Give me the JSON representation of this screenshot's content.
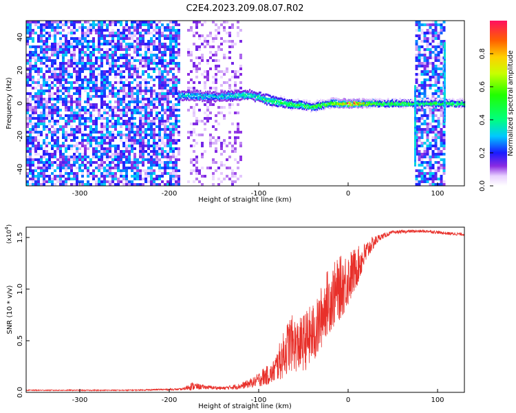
{
  "title": "C2E4.2023.209.08.07.R02",
  "chart_data": [
    {
      "type": "heatmap",
      "xlabel": "Height of straight line (km)",
      "ylabel": "Frequency (Hz)",
      "xlim": [
        -360,
        130
      ],
      "ylim": [
        -50,
        50
      ],
      "xticks": [
        -300,
        -200,
        -100,
        0,
        100
      ],
      "yticks": [
        -40,
        -20,
        0,
        20,
        40
      ],
      "colorbar": {
        "label": "Normalized spectral amplitude",
        "range": [
          0.0,
          1.0
        ],
        "ticks": [
          0.0,
          0.2,
          0.4,
          0.6,
          0.8
        ],
        "tick_labels": [
          "0.0",
          "0.2",
          "0.4",
          "0.6",
          "0.8"
        ]
      },
      "noise_regions": [
        {
          "x": [
            -360,
            -190
          ],
          "density": 0.72,
          "level": 0.28
        },
        {
          "x": [
            -180,
            -120
          ],
          "density": 0.28,
          "level": 0.1
        },
        {
          "x": [
            75,
            108
          ],
          "density": 0.72,
          "level": 0.28
        }
      ],
      "ridge": [
        {
          "x": -190,
          "y": 5,
          "amp": 0.35,
          "width": 7
        },
        {
          "x": -150,
          "y": 4,
          "amp": 0.35,
          "width": 7
        },
        {
          "x": -110,
          "y": 5,
          "amp": 0.4,
          "width": 7
        },
        {
          "x": -90,
          "y": 2,
          "amp": 0.45,
          "width": 7
        },
        {
          "x": -70,
          "y": 0,
          "amp": 0.5,
          "width": 6
        },
        {
          "x": -40,
          "y": -2,
          "amp": 0.55,
          "width": 5
        },
        {
          "x": -20,
          "y": 0,
          "amp": 0.65,
          "width": 5
        },
        {
          "x": 0,
          "y": 0,
          "amp": 0.95,
          "width": 4
        },
        {
          "x": 40,
          "y": 0,
          "amp": 0.55,
          "width": 4
        },
        {
          "x": 72,
          "y": 0,
          "amp": 0.55,
          "width": 4
        },
        {
          "x": 110,
          "y": 0,
          "amp": 0.55,
          "width": 4
        },
        {
          "x": 130,
          "y": 0,
          "amp": 0.55,
          "width": 4
        }
      ],
      "vertical_streaks": [
        {
          "x": 75,
          "y": [
            -37,
            12
          ]
        },
        {
          "x": 108,
          "y": [
            -10,
            38
          ]
        }
      ]
    },
    {
      "type": "line",
      "xlabel": "Height of straight line (km)",
      "ylabel": "SNR (10 * v/v)",
      "multiplier": "(x10",
      "multiplier_exp": "4",
      "multiplier_close": ")",
      "xlim": [
        -360,
        130
      ],
      "ylim": [
        0,
        1.6
      ],
      "xticks": [
        -300,
        -200,
        -100,
        0,
        100
      ],
      "yticks": [
        0.0,
        0.5,
        1.0,
        1.5
      ],
      "ytick_labels": [
        "0.0",
        "0.5",
        "1.0",
        "1.5"
      ],
      "color": "#e8302a",
      "series": [
        {
          "x": [
            -360,
            -250,
            -185,
            -175,
            -160,
            -140,
            -120,
            -105,
            -95,
            -85,
            -75,
            -65,
            -55,
            -45,
            -35,
            -25,
            -15,
            -5,
            5,
            15,
            25,
            35,
            50,
            70,
            90,
            110,
            130
          ],
          "values": [
            0.02,
            0.02,
            0.03,
            0.06,
            0.05,
            0.04,
            0.06,
            0.1,
            0.15,
            0.18,
            0.32,
            0.48,
            0.45,
            0.52,
            0.6,
            0.85,
            0.95,
            1.05,
            1.15,
            1.28,
            1.42,
            1.5,
            1.55,
            1.56,
            1.56,
            1.54,
            1.53
          ],
          "noise": [
            0.005,
            0.005,
            0.01,
            0.04,
            0.02,
            0.015,
            0.03,
            0.05,
            0.09,
            0.1,
            0.2,
            0.28,
            0.26,
            0.3,
            0.3,
            0.32,
            0.32,
            0.3,
            0.24,
            0.15,
            0.08,
            0.03,
            0.015,
            0.015,
            0.015,
            0.015,
            0.015
          ]
        }
      ]
    }
  ]
}
